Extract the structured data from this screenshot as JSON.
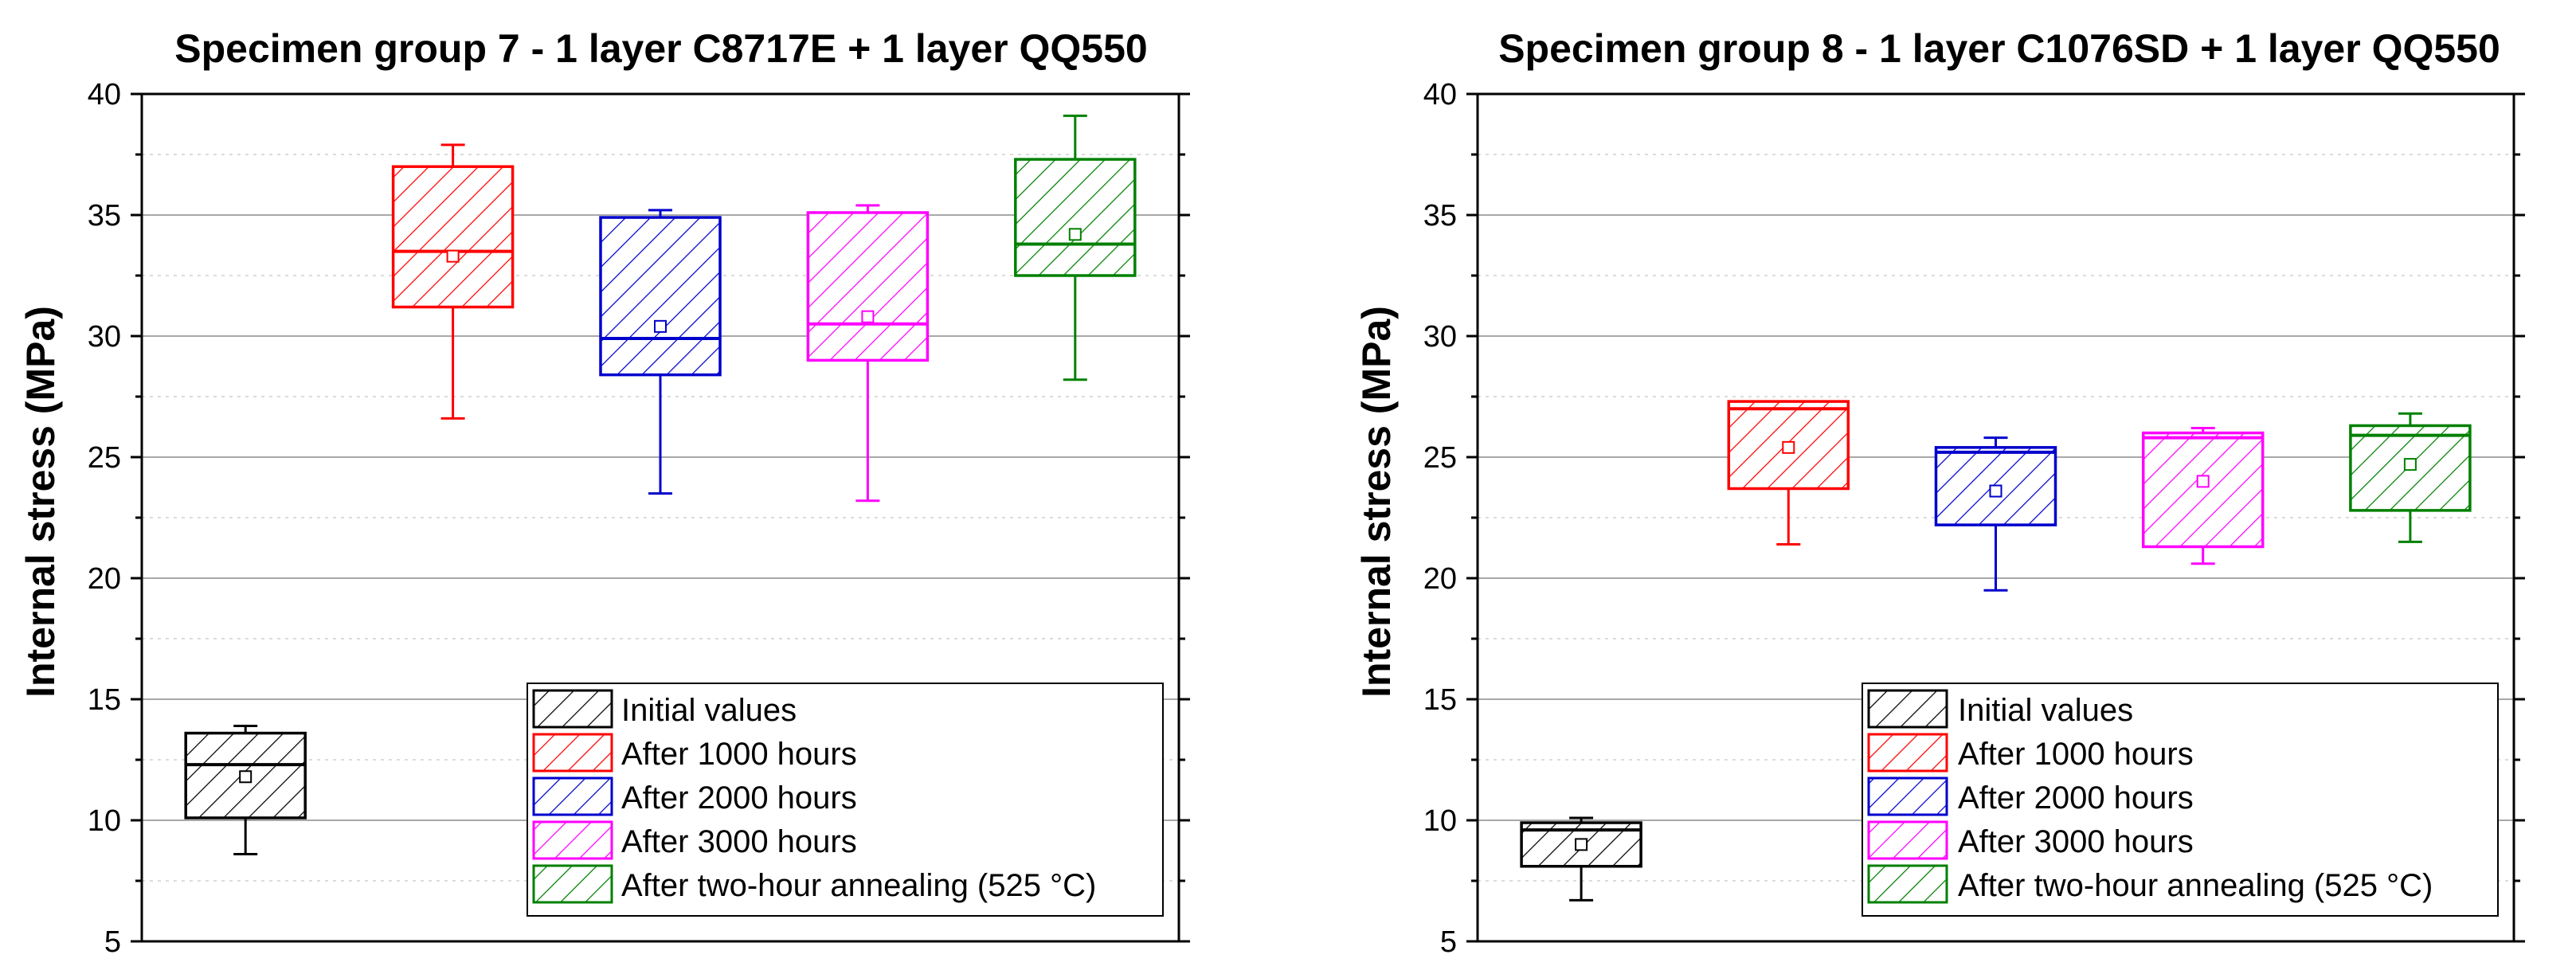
{
  "chart_data": [
    {
      "type": "box",
      "title": "Specimen group 7 - 1 layer C8717E + 1 layer QQ550",
      "xlabel": "",
      "ylabel": "Internal stress (MPa)",
      "ylim": [
        5,
        40
      ],
      "yticks": [
        5,
        10,
        15,
        20,
        25,
        30,
        35,
        40
      ],
      "grid": true,
      "legend_position": "bottom-right",
      "series": [
        {
          "name": "Initial values",
          "color": "#000000",
          "min": 8.6,
          "q1": 10.1,
          "median": 12.3,
          "q3": 13.6,
          "max": 13.9,
          "mean": 11.8
        },
        {
          "name": "After 1000 hours",
          "color": "#ff0000",
          "min": 26.6,
          "q1": 31.2,
          "median": 33.5,
          "q3": 37.0,
          "max": 37.9,
          "mean": 33.3
        },
        {
          "name": "After 2000 hours",
          "color": "#0000cc",
          "min": 23.5,
          "q1": 28.4,
          "median": 29.9,
          "q3": 34.9,
          "max": 35.2,
          "mean": 30.4
        },
        {
          "name": "After 3000 hours",
          "color": "#ff00ff",
          "min": 23.2,
          "q1": 29.0,
          "median": 30.5,
          "q3": 35.1,
          "max": 35.4,
          "mean": 30.8
        },
        {
          "name": "After two-hour annealing (525 °C)",
          "color": "#008000",
          "min": 28.2,
          "q1": 32.5,
          "median": 33.8,
          "q3": 37.3,
          "max": 39.1,
          "mean": 34.2
        }
      ]
    },
    {
      "type": "box",
      "title": "Specimen group 8 - 1 layer C1076SD + 1 layer QQ550",
      "xlabel": "",
      "ylabel": "Internal stress (MPa)",
      "ylim": [
        5,
        40
      ],
      "yticks": [
        5,
        10,
        15,
        20,
        25,
        30,
        35,
        40
      ],
      "grid": true,
      "legend_position": "bottom-right",
      "series": [
        {
          "name": "Initial values",
          "color": "#000000",
          "min": 6.7,
          "q1": 8.1,
          "median": 9.6,
          "q3": 9.9,
          "max": 10.1,
          "mean": 9.0
        },
        {
          "name": "After 1000 hours",
          "color": "#ff0000",
          "min": 21.4,
          "q1": 23.7,
          "median": 27.0,
          "q3": 27.3,
          "max": 27.3,
          "mean": 25.4
        },
        {
          "name": "After 2000 hours",
          "color": "#0000cc",
          "min": 19.5,
          "q1": 22.2,
          "median": 25.2,
          "q3": 25.4,
          "max": 25.8,
          "mean": 23.6
        },
        {
          "name": "After 3000 hours",
          "color": "#ff00ff",
          "min": 20.6,
          "q1": 21.3,
          "median": 25.8,
          "q3": 26.0,
          "max": 26.2,
          "mean": 24.0
        },
        {
          "name": "After two-hour annealing (525 °C)",
          "color": "#008000",
          "min": 21.5,
          "q1": 22.8,
          "median": 25.9,
          "q3": 26.3,
          "max": 26.8,
          "mean": 24.7
        }
      ]
    }
  ]
}
